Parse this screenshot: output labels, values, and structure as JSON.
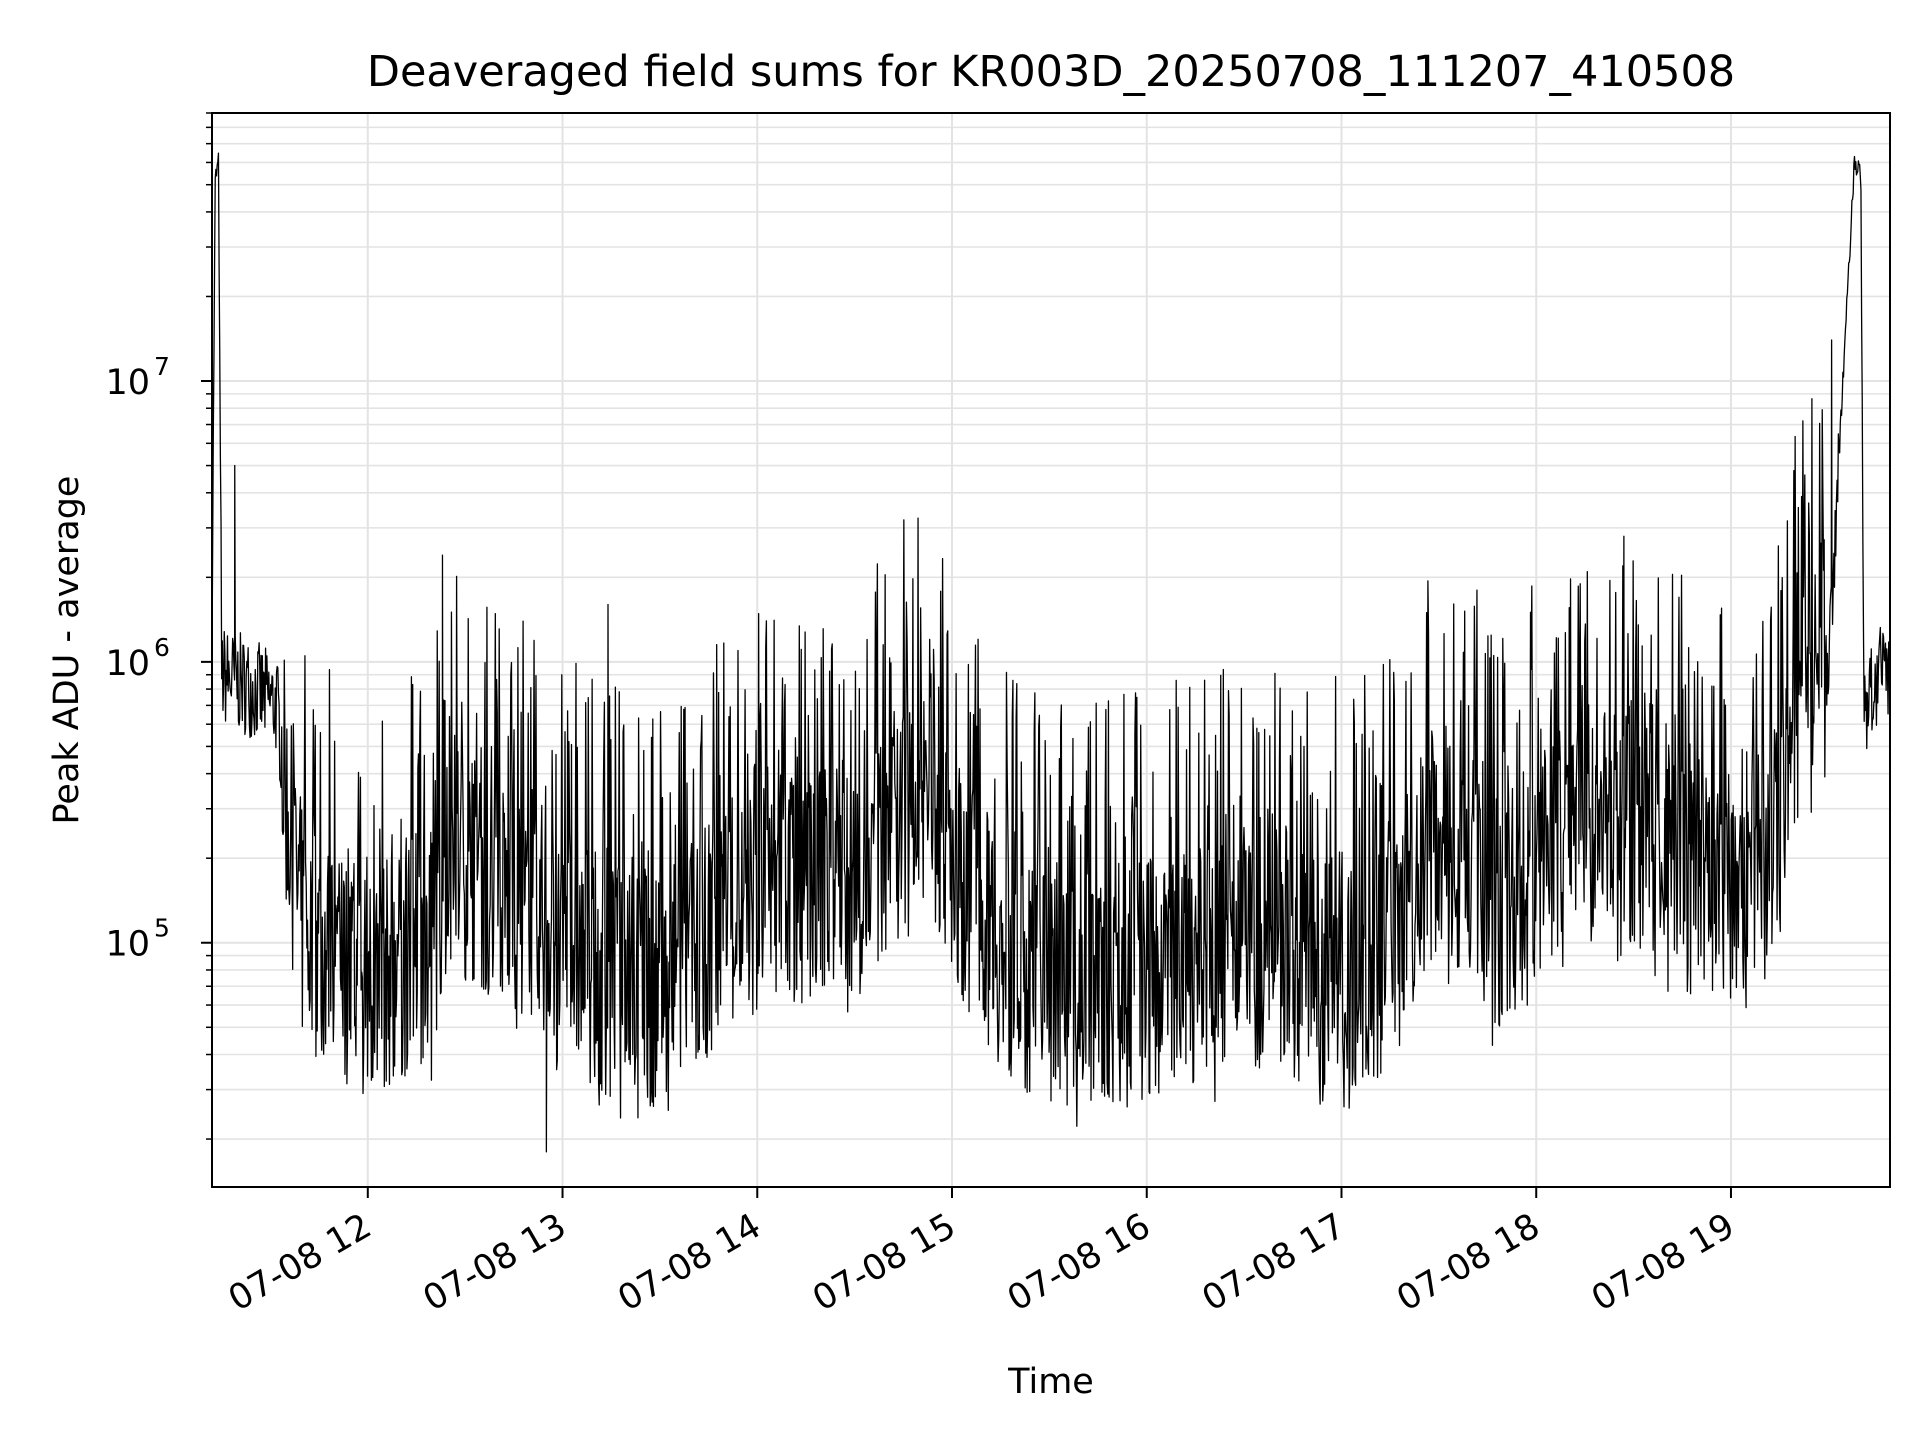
{
  "chart_data": {
    "type": "line",
    "title": "Deaveraged field sums for KR003D_20250708_111207_410508",
    "xlabel": "Time",
    "ylabel": "Peak ADU - average",
    "x_ticks": [
      "07-08 12",
      "07-08 13",
      "07-08 14",
      "07-08 15",
      "07-08 16",
      "07-08 17",
      "07-08 18",
      "07-08 19"
    ],
    "x_range": [
      "07-08 11:12",
      "07-08 19:49"
    ],
    "y_scale": "log",
    "y_ticks": [
      {
        "base": "10",
        "exp": "5"
      },
      {
        "base": "10",
        "exp": "6"
      },
      {
        "base": "10",
        "exp": "7"
      }
    ],
    "ylim": [
      13500,
      90000000
    ],
    "grid": true,
    "line_color": "#000000",
    "grid_color": "#e3e3e3",
    "series": [
      {
        "time_start": "07-08 11:12",
        "time_end": "07-08 19:49",
        "note_values": "approximate trend of the dense noisy series (center value and peak extents per segment, in ADU)",
        "trend": [
          [
            "07-08 11:12",
            1500000
          ],
          [
            "07-08 11:13",
            52000000
          ],
          [
            "07-08 11:14",
            60000000
          ],
          [
            "07-08 11:15",
            900000
          ],
          [
            "07-08 11:25",
            800000
          ],
          [
            "07-08 11:32",
            700000
          ],
          [
            "07-08 11:36",
            250000
          ],
          [
            "07-08 11:40",
            110000
          ],
          [
            "07-08 12:00",
            70000
          ],
          [
            "07-08 12:20",
            100000
          ],
          [
            "07-08 12:25",
            220000
          ],
          [
            "07-08 12:40",
            150000
          ],
          [
            "07-08 12:55",
            120000
          ],
          [
            "07-08 13:10",
            80000
          ],
          [
            "07-08 13:30",
            65000
          ],
          [
            "07-08 13:40",
            90000
          ],
          [
            "07-08 14:00",
            150000
          ],
          [
            "07-08 14:30",
            160000
          ],
          [
            "07-08 14:50",
            350000
          ],
          [
            "07-08 15:05",
            150000
          ],
          [
            "07-08 15:20",
            75000
          ],
          [
            "07-08 15:40",
            65000
          ],
          [
            "07-08 16:00",
            75000
          ],
          [
            "07-08 16:30",
            90000
          ],
          [
            "07-08 17:00",
            80000
          ],
          [
            "07-08 17:10",
            80000
          ],
          [
            "07-08 17:30",
            250000
          ],
          [
            "07-08 17:50",
            120000
          ],
          [
            "07-08 18:00",
            200000
          ],
          [
            "07-08 18:20",
            300000
          ],
          [
            "07-08 18:40",
            200000
          ],
          [
            "07-08 19:00",
            150000
          ],
          [
            "07-08 19:15",
            250000
          ],
          [
            "07-08 19:20",
            800000
          ],
          [
            "07-08 19:30",
            1000000
          ],
          [
            "07-08 19:38",
            60000000
          ],
          [
            "07-08 19:40",
            55000000
          ],
          [
            "07-08 19:41",
            700000
          ],
          [
            "07-08 19:49",
            1000000
          ]
        ],
        "extreme_spikes": [
          [
            "07-08 11:19",
            5000000
          ],
          [
            "07-08 12:23",
            2400000
          ],
          [
            "07-08 13:14",
            1600000
          ],
          [
            "07-08 18:27",
            2800000
          ],
          [
            "07-08 19:31",
            14000000
          ]
        ],
        "minimum": [
          "07-08 12:55",
          18000
        ]
      }
    ]
  }
}
